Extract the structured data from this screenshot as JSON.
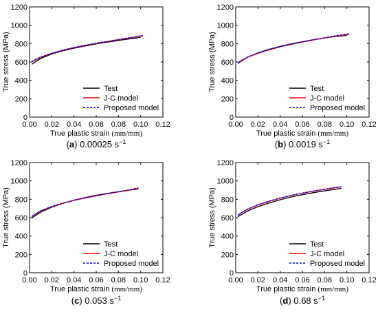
{
  "chart_data": [
    {
      "type": "line",
      "caption_label": "a",
      "caption_rate": "0.00025 s",
      "caption_exp": "−1",
      "xlabel": "True plastic strain",
      "xlabel_unit": "(mm/mm)",
      "ylabel": "True stress (MPa)",
      "xlim": [
        0,
        0.12
      ],
      "ylim": [
        0,
        1200
      ],
      "xticks": [
        "0.00",
        "0.02",
        "0.04",
        "0.06",
        "0.08",
        "0.10",
        "0.12"
      ],
      "yticks": [
        "0",
        "200",
        "400",
        "600",
        "800",
        "1000",
        "1200"
      ],
      "legend_position": "lower-right",
      "series": [
        {
          "name": "Test",
          "color": "#000000",
          "dash": "",
          "x": [
            0.002,
            0.005,
            0.01,
            0.02,
            0.03,
            0.04,
            0.05,
            0.06,
            0.07,
            0.08,
            0.09,
            0.1
          ],
          "y": [
            575,
            600,
            638,
            688,
            722,
            750,
            775,
            797,
            816,
            835,
            852,
            868
          ]
        },
        {
          "name": "J-C model",
          "color": "#ff0000",
          "dash": "",
          "x": [
            0.002,
            0.005,
            0.01,
            0.02,
            0.03,
            0.04,
            0.05,
            0.06,
            0.07,
            0.08,
            0.09,
            0.102
          ],
          "y": [
            600,
            622,
            652,
            693,
            728,
            757,
            781,
            803,
            823,
            843,
            862,
            885
          ]
        },
        {
          "name": "Proposed model",
          "color": "#0000ff",
          "dash": "3,2",
          "x": [
            0.002,
            0.005,
            0.01,
            0.02,
            0.03,
            0.04,
            0.05,
            0.06,
            0.07,
            0.08,
            0.09,
            0.102
          ],
          "y": [
            604,
            626,
            654,
            695,
            729,
            758,
            782,
            804,
            824,
            844,
            864,
            890
          ]
        }
      ]
    },
    {
      "type": "line",
      "caption_label": "b",
      "caption_rate": "0.0019 s",
      "caption_exp": "−1",
      "xlabel": "True plastic strain",
      "xlabel_unit": "(mm/mm)",
      "ylabel": "True stress (MPa)",
      "xlim": [
        0,
        0.12
      ],
      "ylim": [
        0,
        1200
      ],
      "xticks": [
        "0.00",
        "0.02",
        "0.04",
        "0.06",
        "0.08",
        "0.10",
        "0.12"
      ],
      "yticks": [
        "0",
        "200",
        "400",
        "600",
        "800",
        "1000",
        "1200"
      ],
      "legend_position": "lower-right",
      "series": [
        {
          "name": "Test",
          "color": "#000000",
          "dash": "",
          "x": [
            0.002,
            0.005,
            0.01,
            0.02,
            0.03,
            0.04,
            0.05,
            0.06,
            0.07,
            0.08,
            0.09,
            0.1
          ],
          "y": [
            585,
            610,
            648,
            700,
            738,
            770,
            797,
            821,
            843,
            862,
            878,
            890
          ]
        },
        {
          "name": "J-C model",
          "color": "#ff0000",
          "dash": "",
          "x": [
            0.002,
            0.005,
            0.01,
            0.02,
            0.03,
            0.04,
            0.05,
            0.06,
            0.07,
            0.08,
            0.09,
            0.102
          ],
          "y": [
            590,
            615,
            648,
            695,
            733,
            765,
            792,
            817,
            840,
            862,
            882,
            900
          ]
        },
        {
          "name": "Proposed model",
          "color": "#0000ff",
          "dash": "3,2",
          "x": [
            0.002,
            0.005,
            0.01,
            0.02,
            0.03,
            0.04,
            0.05,
            0.06,
            0.07,
            0.08,
            0.09,
            0.102
          ],
          "y": [
            592,
            617,
            650,
            697,
            735,
            767,
            794,
            819,
            842,
            864,
            886,
            908
          ]
        }
      ]
    },
    {
      "type": "line",
      "caption_label": "c",
      "caption_rate": "0.053 s",
      "caption_exp": "−1",
      "xlabel": "True plastic strain",
      "xlabel_unit": "(mm/mm)",
      "ylabel": "True stress (MPa)",
      "xlim": [
        0,
        0.12
      ],
      "ylim": [
        0,
        1200
      ],
      "xticks": [
        "0.00",
        "0.02",
        "0.04",
        "0.06",
        "0.08",
        "0.10",
        "0.12"
      ],
      "yticks": [
        "0",
        "200",
        "400",
        "600",
        "800",
        "1000",
        "1200"
      ],
      "legend_position": "lower-right",
      "series": [
        {
          "name": "Test",
          "color": "#000000",
          "dash": "",
          "x": [
            0.002,
            0.005,
            0.01,
            0.02,
            0.03,
            0.04,
            0.05,
            0.06,
            0.07,
            0.08,
            0.09,
            0.098
          ],
          "y": [
            595,
            622,
            660,
            715,
            755,
            790,
            818,
            843,
            864,
            883,
            900,
            912
          ]
        },
        {
          "name": "J-C model",
          "color": "#ff0000",
          "dash": "",
          "x": [
            0.002,
            0.005,
            0.01,
            0.02,
            0.03,
            0.04,
            0.05,
            0.06,
            0.07,
            0.08,
            0.09,
            0.098
          ],
          "y": [
            610,
            638,
            672,
            720,
            757,
            788,
            814,
            838,
            860,
            880,
            900,
            918
          ]
        },
        {
          "name": "Proposed model",
          "color": "#0000ff",
          "dash": "3,2",
          "x": [
            0.002,
            0.005,
            0.01,
            0.02,
            0.03,
            0.04,
            0.05,
            0.06,
            0.07,
            0.08,
            0.09,
            0.098
          ],
          "y": [
            612,
            640,
            674,
            722,
            759,
            790,
            816,
            840,
            862,
            882,
            903,
            925
          ]
        }
      ]
    },
    {
      "type": "line",
      "caption_label": "d",
      "caption_rate": "0.68 s",
      "caption_exp": "−1",
      "xlabel": "True plastic strain",
      "xlabel_unit": "(mm/mm)",
      "ylabel": "True stress (MPa)",
      "xlim": [
        0,
        0.12
      ],
      "ylim": [
        0,
        1200
      ],
      "xticks": [
        "0.00",
        "0.02",
        "0.04",
        "0.06",
        "0.08",
        "0.10",
        "0.12"
      ],
      "yticks": [
        "0",
        "200",
        "400",
        "600",
        "800",
        "1000",
        "1200"
      ],
      "legend_position": "lower-right",
      "series": [
        {
          "name": "Test",
          "color": "#000000",
          "dash": "",
          "x": [
            0.002,
            0.005,
            0.01,
            0.02,
            0.03,
            0.04,
            0.05,
            0.06,
            0.07,
            0.08,
            0.09,
            0.095
          ],
          "y": [
            610,
            632,
            668,
            720,
            760,
            795,
            825,
            850,
            872,
            892,
            910,
            918
          ]
        },
        {
          "name": "J-C model",
          "color": "#ff0000",
          "dash": "",
          "x": [
            0.002,
            0.005,
            0.01,
            0.02,
            0.03,
            0.04,
            0.05,
            0.06,
            0.07,
            0.08,
            0.09,
            0.095
          ],
          "y": [
            625,
            652,
            688,
            738,
            778,
            812,
            840,
            866,
            888,
            908,
            927,
            935
          ]
        },
        {
          "name": "Proposed model",
          "color": "#0000ff",
          "dash": "3,2",
          "x": [
            0.002,
            0.005,
            0.01,
            0.02,
            0.03,
            0.04,
            0.05,
            0.06,
            0.07,
            0.08,
            0.09,
            0.095
          ],
          "y": [
            627,
            654,
            690,
            740,
            780,
            814,
            842,
            868,
            890,
            910,
            930,
            938
          ]
        }
      ]
    }
  ]
}
